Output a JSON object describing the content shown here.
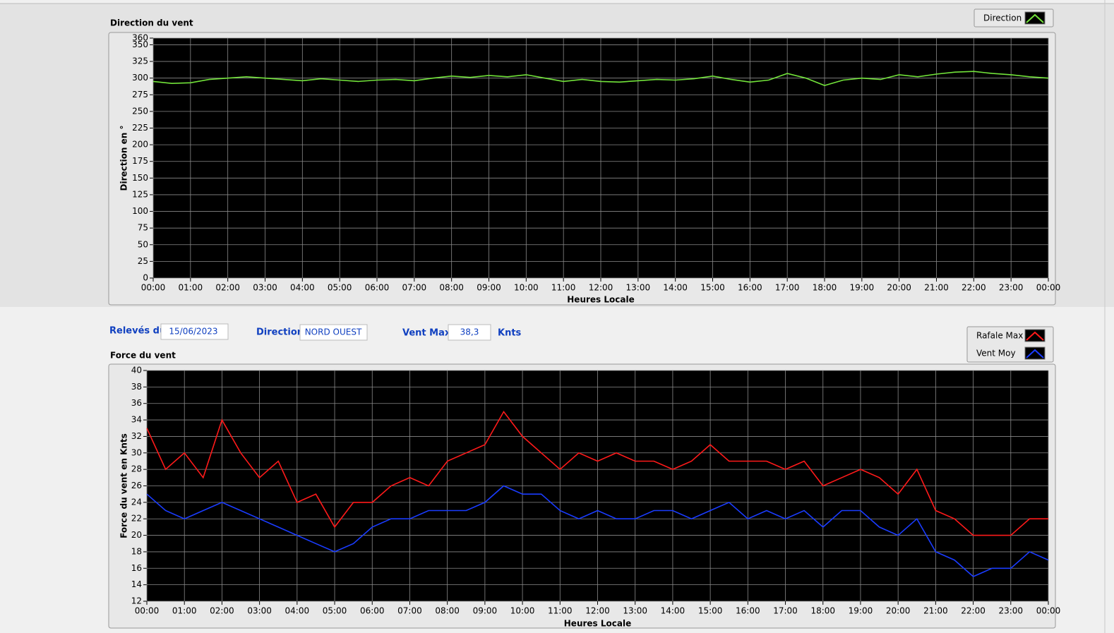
{
  "fields": {
    "date_label": "Relevés du",
    "date_value": "15/06/2023",
    "direction_label": "Direction",
    "direction_value": "NORD OUEST",
    "vmax_label": "Vent Max",
    "vmax_value": "38,3",
    "vmax_unit": "Knts"
  },
  "chart_data": [
    {
      "type": "line",
      "title": "Direction du vent",
      "x_label": "Heures Locale",
      "y_label": "Direction en °",
      "grid": true,
      "legend": "upper-right",
      "x": [
        0,
        0.5,
        1,
        1.5,
        2,
        2.5,
        3,
        3.5,
        4,
        4.5,
        5,
        5.5,
        6,
        6.5,
        7,
        7.5,
        8,
        8.5,
        9,
        9.5,
        10,
        10.5,
        11,
        11.5,
        12,
        12.5,
        13,
        13.5,
        14,
        14.5,
        15,
        15.5,
        16,
        16.5,
        17,
        17.5,
        18,
        18.5,
        19,
        19.5,
        20,
        20.5,
        21,
        21.5,
        22,
        22.5,
        23,
        23.5,
        24
      ],
      "series": [
        {
          "name": "Direction",
          "color": "#72e33a",
          "values": [
            295,
            292,
            293,
            298,
            300,
            302,
            300,
            298,
            296,
            299,
            297,
            295,
            297,
            298,
            296,
            300,
            303,
            301,
            304,
            302,
            305,
            300,
            295,
            298,
            295,
            294,
            296,
            298,
            297,
            299,
            303,
            298,
            294,
            297,
            307,
            300,
            289,
            297,
            300,
            298,
            305,
            302,
            306,
            309,
            310,
            307,
            305,
            302,
            300
          ]
        }
      ],
      "xlim": [
        0,
        24
      ],
      "xticks": [
        {
          "value": 0,
          "label": "00:00"
        },
        {
          "value": 1,
          "label": "01:00"
        },
        {
          "value": 2,
          "label": "02:00"
        },
        {
          "value": 3,
          "label": "03:00"
        },
        {
          "value": 4,
          "label": "04:00"
        },
        {
          "value": 5,
          "label": "05:00"
        },
        {
          "value": 6,
          "label": "06:00"
        },
        {
          "value": 7,
          "label": "07:00"
        },
        {
          "value": 8,
          "label": "08:00"
        },
        {
          "value": 9,
          "label": "09:00"
        },
        {
          "value": 10,
          "label": "10:00"
        },
        {
          "value": 11,
          "label": "11:00"
        },
        {
          "value": 12,
          "label": "12:00"
        },
        {
          "value": 13,
          "label": "13:00"
        },
        {
          "value": 14,
          "label": "14:00"
        },
        {
          "value": 15,
          "label": "15:00"
        },
        {
          "value": 16,
          "label": "16:00"
        },
        {
          "value": 17,
          "label": "17:00"
        },
        {
          "value": 18,
          "label": "18:00"
        },
        {
          "value": 19,
          "label": "19:00"
        },
        {
          "value": 20,
          "label": "20:00"
        },
        {
          "value": 21,
          "label": "21:00"
        },
        {
          "value": 22,
          "label": "22:00"
        },
        {
          "value": 23,
          "label": "23:00"
        },
        {
          "value": 24,
          "label": "00:00"
        }
      ],
      "ylim": [
        0,
        360
      ],
      "yticks": [
        0,
        25,
        50,
        75,
        100,
        125,
        150,
        175,
        200,
        225,
        250,
        275,
        300,
        325,
        350,
        360
      ]
    },
    {
      "type": "line",
      "title": "Force du vent",
      "x_label": "Heures Locale",
      "y_label": "Force du vent en Knts",
      "grid": true,
      "legend": "upper-right",
      "x": [
        0,
        0.5,
        1,
        1.5,
        2,
        2.5,
        3,
        3.5,
        4,
        4.5,
        5,
        5.5,
        6,
        6.5,
        7,
        7.5,
        8,
        8.5,
        9,
        9.5,
        10,
        10.5,
        11,
        11.5,
        12,
        12.5,
        13,
        13.5,
        14,
        14.5,
        15,
        15.5,
        16,
        16.5,
        17,
        17.5,
        18,
        18.5,
        19,
        19.5,
        20,
        20.5,
        21,
        21.5,
        22,
        22.5,
        23,
        23.5,
        24
      ],
      "series": [
        {
          "name": "Rafale Max",
          "color": "#ff1a1a",
          "values": [
            33,
            28,
            30,
            27,
            34,
            30,
            27,
            29,
            24,
            25,
            21,
            24,
            24,
            26,
            27,
            26,
            29,
            30,
            31,
            35,
            32,
            30,
            28,
            30,
            29,
            30,
            29,
            29,
            28,
            29,
            31,
            29,
            29,
            29,
            28,
            29,
            26,
            27,
            28,
            27,
            25,
            28,
            23,
            22,
            20,
            20,
            20,
            22,
            22
          ]
        },
        {
          "name": "Vent Moy",
          "color": "#1a3cff",
          "values": [
            25,
            23,
            22,
            23,
            24,
            23,
            22,
            21,
            20,
            19,
            18,
            19,
            21,
            22,
            22,
            23,
            23,
            23,
            24,
            26,
            25,
            25,
            23,
            22,
            23,
            22,
            22,
            23,
            23,
            22,
            23,
            24,
            22,
            23,
            22,
            23,
            21,
            23,
            23,
            21,
            20,
            22,
            18,
            17,
            15,
            16,
            16,
            18,
            17
          ]
        }
      ],
      "xlim": [
        0,
        24
      ],
      "xticks": [
        {
          "value": 0,
          "label": "00:00"
        },
        {
          "value": 1,
          "label": "01:00"
        },
        {
          "value": 2,
          "label": "02:00"
        },
        {
          "value": 3,
          "label": "03:00"
        },
        {
          "value": 4,
          "label": "04:00"
        },
        {
          "value": 5,
          "label": "05:00"
        },
        {
          "value": 6,
          "label": "06:00"
        },
        {
          "value": 7,
          "label": "07:00"
        },
        {
          "value": 8,
          "label": "08:00"
        },
        {
          "value": 9,
          "label": "09:00"
        },
        {
          "value": 10,
          "label": "10:00"
        },
        {
          "value": 11,
          "label": "11:00"
        },
        {
          "value": 12,
          "label": "12:00"
        },
        {
          "value": 13,
          "label": "13:00"
        },
        {
          "value": 14,
          "label": "14:00"
        },
        {
          "value": 15,
          "label": "15:00"
        },
        {
          "value": 16,
          "label": "16:00"
        },
        {
          "value": 17,
          "label": "17:00"
        },
        {
          "value": 18,
          "label": "18:00"
        },
        {
          "value": 19,
          "label": "19:00"
        },
        {
          "value": 20,
          "label": "20:00"
        },
        {
          "value": 21,
          "label": "21:00"
        },
        {
          "value": 22,
          "label": "22:00"
        },
        {
          "value": 23,
          "label": "23:00"
        },
        {
          "value": 24,
          "label": "00:00"
        }
      ],
      "ylim": [
        12,
        40
      ],
      "yticks": [
        12,
        14,
        16,
        18,
        20,
        22,
        24,
        26,
        28,
        30,
        32,
        34,
        36,
        38,
        40
      ]
    }
  ]
}
